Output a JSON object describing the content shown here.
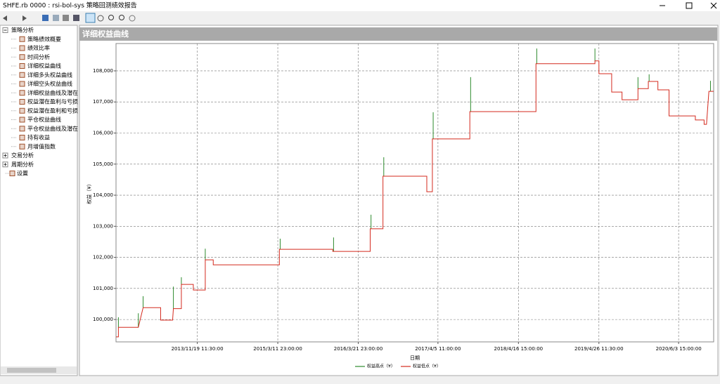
{
  "window": {
    "title": "SHFE.rb 0000 : rsi-bol-sys 策略回测绩效报告"
  },
  "tree": [
    {
      "label": "策略分析",
      "children": [
        "策略绩效概要",
        "绩效比率",
        "时间分析",
        "详细权益曲线",
        "详细多头权益曲线",
        "详细空头权益曲线",
        "详细权益曲线及潜在",
        "权益潜在盈利与亏损",
        "权益潜在盈利和亏损",
        "平仓权益曲线",
        "平仓权益曲线及潜在",
        "持有收益",
        "月增值指数"
      ]
    },
    {
      "label": "交易分析"
    },
    {
      "label": "周期分析"
    },
    {
      "label": "设置"
    }
  ],
  "panel": {
    "title": "详细权益曲线"
  },
  "chart_data": {
    "type": "line",
    "xlabel": "日期",
    "ylabel": "权益（¥）",
    "grid": true,
    "xlim": [
      0,
      750
    ],
    "ylim": [
      99280,
      108880
    ],
    "xticks": [
      {
        "value": 102,
        "label": "2013/11/19 11:30:00"
      },
      {
        "value": 203,
        "label": "2015/3/11 23:00:00"
      },
      {
        "value": 304,
        "label": "2016/3/21 23:00:00"
      },
      {
        "value": 404,
        "label": "2017/4/5 11:00:00"
      },
      {
        "value": 505,
        "label": "2018/4/16 15:00:00"
      },
      {
        "value": 606,
        "label": "2019/4/26 11:30:00"
      },
      {
        "value": 706,
        "label": "2020/6/3 15:00:00"
      }
    ],
    "yticks": [
      {
        "value": 100000,
        "label": "100,000"
      },
      {
        "value": 101000,
        "label": "101,000"
      },
      {
        "value": 102000,
        "label": "102,000"
      },
      {
        "value": 103000,
        "label": "103,000"
      },
      {
        "value": 104000,
        "label": "104,000"
      },
      {
        "value": 105000,
        "label": "105,000"
      },
      {
        "value": 106000,
        "label": "106,000"
      },
      {
        "value": 107000,
        "label": "107,000"
      },
      {
        "value": 108000,
        "label": "108,000"
      }
    ],
    "series": [
      {
        "name": "权益高点（¥）",
        "color": "#2e8b2e",
        "x": [
          3,
          3,
          3,
          28,
          28,
          28,
          34,
          34,
          34,
          72,
          72,
          72,
          82,
          82,
          82,
          112,
          112,
          112,
          206,
          206,
          206,
          273,
          273,
          273,
          320,
          320,
          320,
          336,
          336,
          336,
          398,
          398,
          398,
          445,
          445,
          445,
          528,
          528,
          528,
          601,
          601,
          601,
          655,
          655,
          655,
          669,
          669,
          669,
          746,
          746
        ],
        "values": [
          99750,
          100070,
          null,
          99750,
          100200,
          null,
          100380,
          100750,
          null,
          100350,
          101060,
          null,
          101130,
          101360,
          null,
          101920,
          102280,
          null,
          102260,
          102600,
          null,
          102190,
          102640,
          null,
          102920,
          103370,
          null,
          104610,
          105220,
          null,
          105810,
          106670,
          null,
          106690,
          107800,
          null,
          108230,
          108720,
          null,
          108320,
          108720,
          null,
          107430,
          107800,
          null,
          107660,
          107890,
          null,
          107340,
          107680
        ]
      },
      {
        "name": "权益低点（¥）",
        "color": "#d42a1e",
        "x": [
          0,
          3,
          3,
          28,
          34,
          56,
          56,
          71,
          72,
          82,
          82,
          97,
          97,
          112,
          112,
          122,
          122,
          205,
          205,
          272,
          272,
          319,
          319,
          335,
          335,
          390,
          390,
          397,
          397,
          444,
          444,
          527,
          527,
          601,
          601,
          606,
          606,
          622,
          622,
          635,
          635,
          655,
          655,
          668,
          668,
          680,
          680,
          694,
          694,
          727,
          727,
          738,
          738,
          741,
          744,
          750
        ],
        "values": [
          99440,
          99440,
          99750,
          99750,
          100380,
          100380,
          99980,
          99980,
          100350,
          100350,
          101130,
          101130,
          100950,
          100950,
          101920,
          101920,
          101760,
          101760,
          102260,
          102260,
          102190,
          102190,
          102920,
          102920,
          104610,
          104610,
          104110,
          104110,
          105810,
          105810,
          106690,
          106690,
          108230,
          108230,
          108320,
          108320,
          107910,
          107910,
          107320,
          107320,
          107070,
          107070,
          107430,
          107430,
          107660,
          107660,
          107390,
          107390,
          106550,
          106550,
          106420,
          106420,
          106280,
          106280,
          107340,
          107340
        ]
      }
    ]
  }
}
